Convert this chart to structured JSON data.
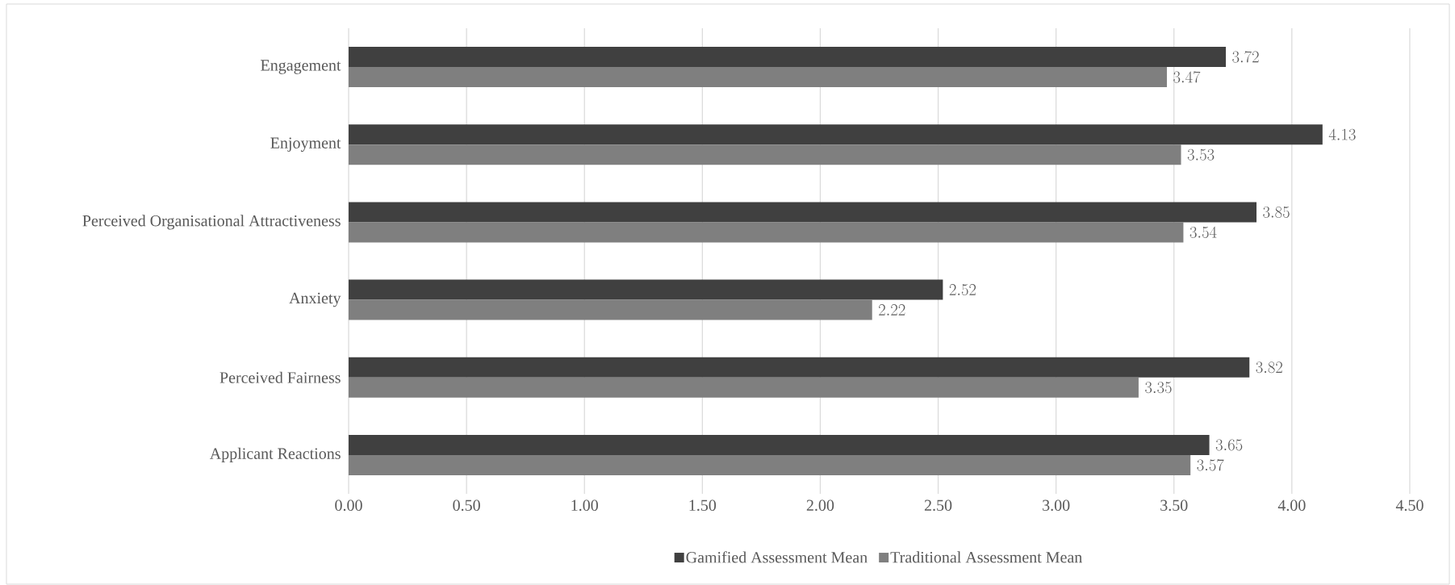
{
  "chart_data": {
    "type": "bar",
    "orientation": "horizontal",
    "categories": [
      "Engagement",
      "Enjoyment",
      "Perceived Organisational Attractiveness",
      "Anxiety",
      "Perceived Fairness",
      "Applicant Reactions"
    ],
    "series": [
      {
        "name": "Gamified Assessment Mean",
        "color": "#404040",
        "values": [
          3.72,
          4.13,
          3.85,
          2.52,
          3.82,
          3.65
        ]
      },
      {
        "name": "Traditional Assessment Mean",
        "color": "#7f7f7f",
        "values": [
          3.47,
          3.53,
          3.54,
          2.22,
          3.35,
          3.57
        ]
      }
    ],
    "xlim": [
      0,
      4.5
    ],
    "xticks": [
      {
        "value": 0,
        "label": "0.00"
      },
      {
        "value": 0.5,
        "label": "0.50"
      },
      {
        "value": 1,
        "label": "1.00"
      },
      {
        "value": 1.5,
        "label": "1.50"
      },
      {
        "value": 2,
        "label": "2.00"
      },
      {
        "value": 2.5,
        "label": "2.50"
      },
      {
        "value": 3,
        "label": "3.00"
      },
      {
        "value": 3.5,
        "label": "3.50"
      },
      {
        "value": 4,
        "label": "4.00"
      },
      {
        "value": 4.5,
        "label": "4.50"
      }
    ],
    "grid": "x",
    "legend": "bottom",
    "data_labels": true
  }
}
